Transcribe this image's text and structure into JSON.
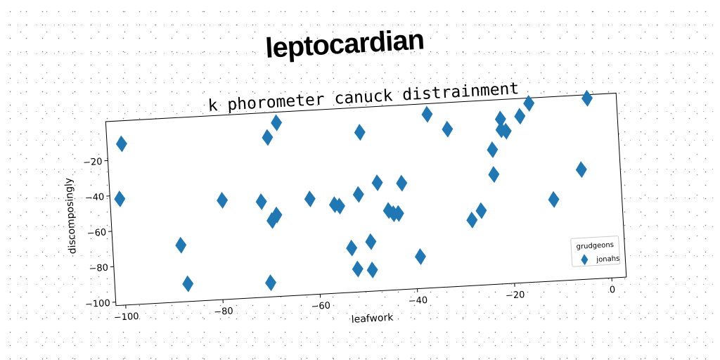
{
  "suptitle": "leptocardian",
  "chart_data": {
    "type": "scatter",
    "title": "k phorometer canuck distrainment",
    "xlabel": "leafwork",
    "ylabel": "discomposingly",
    "xlim": [
      -102,
      3
    ],
    "ylim": [
      -102,
      2
    ],
    "xticks": [
      -100,
      -80,
      -60,
      -40,
      -20,
      0
    ],
    "xtick_labels": [
      "−100",
      "−80",
      "−60",
      "−40",
      "−20",
      "0"
    ],
    "yticks": [
      -20,
      -40,
      -60,
      -80,
      -100
    ],
    "ytick_labels": [
      "−20",
      "−40",
      "−60",
      "−80",
      "−100"
    ],
    "grid": false,
    "legend": {
      "title": "grudgeons",
      "placement": "bottom-right"
    },
    "marker": "diamond",
    "series": [
      {
        "name": "jonahs",
        "color": "#1f77b4",
        "points": [
          [
            -99,
            -11
          ],
          [
            -100,
            -42
          ],
          [
            -88,
            -70
          ],
          [
            -87,
            -92
          ],
          [
            -79,
            -46
          ],
          [
            -71,
            -48
          ],
          [
            -70,
            -94
          ],
          [
            -69,
            -12
          ],
          [
            -69,
            -59
          ],
          [
            -68,
            -56
          ],
          [
            -67,
            -4
          ],
          [
            -61,
            -48
          ],
          [
            -56,
            -52
          ],
          [
            -55,
            -53
          ],
          [
            -53,
            -77
          ],
          [
            -52,
            -89
          ],
          [
            -51,
            -47
          ],
          [
            -50,
            -12
          ],
          [
            -49,
            -74
          ],
          [
            -49,
            -90
          ],
          [
            -47,
            -41
          ],
          [
            -45,
            -57
          ],
          [
            -44,
            -59
          ],
          [
            -43,
            -59
          ],
          [
            -42,
            -42
          ],
          [
            -39,
            -84
          ],
          [
            -36,
            -4
          ],
          [
            -32,
            -13
          ],
          [
            -28,
            -65
          ],
          [
            -26,
            -60
          ],
          [
            -23,
            -26
          ],
          [
            -23,
            -40
          ],
          [
            -21,
            -9
          ],
          [
            -21,
            -15
          ],
          [
            -20,
            -16
          ],
          [
            -17,
            -8
          ],
          [
            -15,
            -1
          ],
          [
            -11,
            -56
          ],
          [
            -5,
            -40
          ],
          [
            -3,
            0
          ]
        ]
      }
    ]
  }
}
